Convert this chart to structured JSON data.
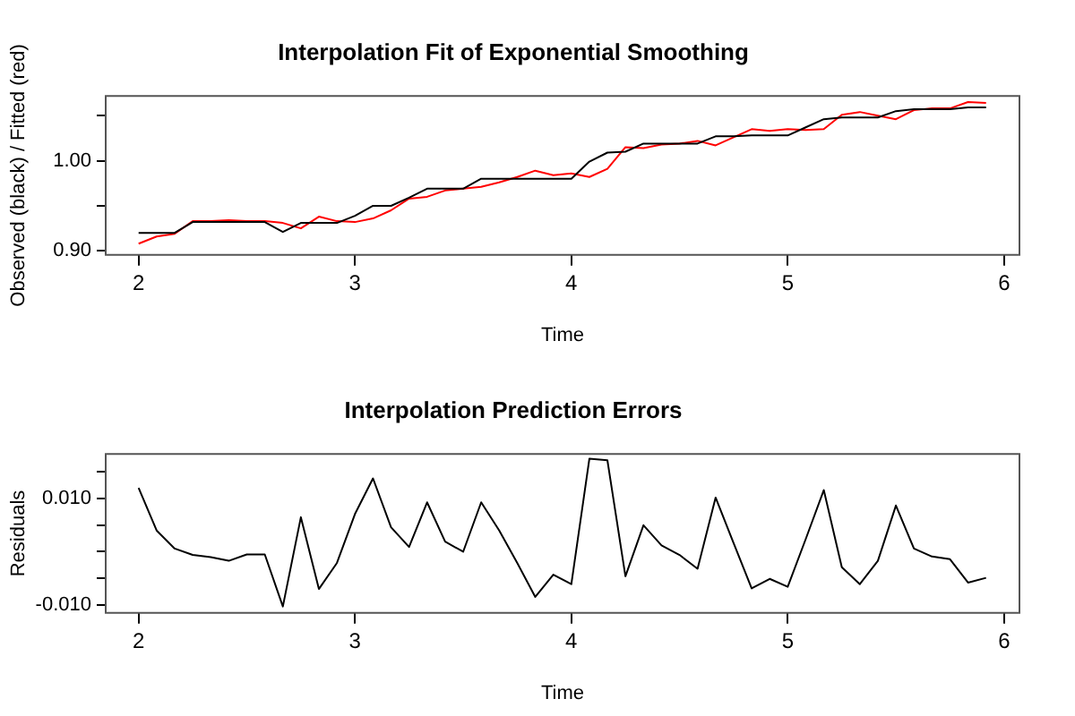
{
  "chart_data": [
    {
      "type": "line",
      "title": "Interpolation Fit of Exponential Smoothing",
      "xlabel": "Time",
      "ylabel": "Observed (black) / Fitted (red)",
      "x": [
        2,
        2.0833,
        2.1667,
        2.25,
        2.3333,
        2.4167,
        2.5,
        2.5833,
        2.6667,
        2.75,
        2.8333,
        2.9167,
        3,
        3.0833,
        3.1667,
        3.25,
        3.3333,
        3.4167,
        3.5,
        3.5833,
        3.6667,
        3.75,
        3.8333,
        3.9167,
        4,
        4.0833,
        4.1667,
        4.25,
        4.3333,
        4.4167,
        4.5,
        4.5833,
        4.6667,
        4.75,
        4.8333,
        4.9167,
        5,
        5.0833,
        5.1667,
        5.25,
        5.3333,
        5.4167,
        5.5,
        5.5833,
        5.6667,
        5.75,
        5.8333,
        5.9167
      ],
      "series": [
        {
          "color": "#000000",
          "values": [
            0.92,
            0.92,
            0.92,
            0.932,
            0.932,
            0.932,
            0.932,
            0.932,
            0.921,
            0.931,
            0.931,
            0.931,
            0.939,
            0.95,
            0.95,
            0.959,
            0.969,
            0.969,
            0.969,
            0.98,
            0.98,
            0.98,
            0.98,
            0.98,
            0.98,
            0.999,
            1.009,
            1.01,
            1.019,
            1.019,
            1.019,
            1.019,
            1.027,
            1.027,
            1.028,
            1.028,
            1.028,
            1.037,
            1.046,
            1.048,
            1.048,
            1.048,
            1.055,
            1.057,
            1.057,
            1.057,
            1.059,
            1.059
          ]
        },
        {
          "color": "#ff0000",
          "values": [
            0.908,
            0.916,
            0.919,
            0.933,
            0.933,
            0.934,
            0.933,
            0.933,
            0.931,
            0.925,
            0.938,
            0.933,
            0.932,
            0.936,
            0.945,
            0.958,
            0.96,
            0.967,
            0.969,
            0.971,
            0.976,
            0.982,
            0.989,
            0.984,
            0.986,
            0.982,
            0.991,
            1.015,
            1.014,
            1.018,
            1.019,
            1.022,
            1.017,
            1.026,
            1.035,
            1.033,
            1.035,
            1.034,
            1.035,
            1.051,
            1.054,
            1.05,
            1.046,
            1.056,
            1.058,
            1.058,
            1.065,
            1.064
          ]
        }
      ],
      "xlim": [
        1.848,
        6.071
      ],
      "xticks": [
        2,
        3,
        4,
        5,
        6
      ],
      "ylim": [
        0.8956,
        1.0718
      ],
      "yticks": [
        {
          "value": 0.9,
          "label": "0.90"
        },
        {
          "value": 0.95,
          "label": null
        },
        {
          "value": 1.0,
          "label": "1.00"
        },
        {
          "value": 1.05,
          "label": null
        }
      ],
      "grid": false,
      "legend": false,
      "marker": "none",
      "line_style": "solid"
    },
    {
      "type": "line",
      "title": "Interpolation Prediction Errors",
      "xlabel": "Time",
      "ylabel": "Residuals",
      "x": [
        2,
        2.0833,
        2.1667,
        2.25,
        2.3333,
        2.4167,
        2.5,
        2.5833,
        2.6667,
        2.75,
        2.8333,
        2.9167,
        3,
        3.0833,
        3.1667,
        3.25,
        3.3333,
        3.4167,
        3.5,
        3.5833,
        3.6667,
        3.75,
        3.8333,
        3.9167,
        4,
        4.0833,
        4.1667,
        4.25,
        4.3333,
        4.4167,
        4.5,
        4.5833,
        4.6667,
        4.75,
        4.8333,
        4.9167,
        5,
        5.0833,
        5.1667,
        5.25,
        5.3333,
        5.4167,
        5.5,
        5.5833,
        5.6667,
        5.75,
        5.8333,
        5.9167
      ],
      "series": [
        {
          "color": "#000000",
          "values": [
            0.012,
            0.004,
            0.0006,
            -0.0006,
            -0.001,
            -0.0017,
            -0.0005,
            -0.0005,
            -0.0103,
            0.0065,
            -0.007,
            -0.0021,
            0.0071,
            0.0138,
            0.0046,
            0.0009,
            0.0093,
            0.0019,
            0.0,
            0.0093,
            0.004,
            -0.0021,
            -0.0085,
            -0.0043,
            -0.0061,
            0.0175,
            0.0172,
            -0.0046,
            0.005,
            0.0012,
            -0.0006,
            -0.0032,
            0.0102,
            0.0016,
            -0.0069,
            -0.0051,
            -0.0066,
            0.0024,
            0.0116,
            -0.0029,
            -0.0061,
            -0.0017,
            0.0087,
            0.0006,
            -0.0009,
            -0.0014,
            -0.0058,
            -0.0049
          ]
        }
      ],
      "xlim": [
        1.848,
        6.071
      ],
      "xticks": [
        2,
        3,
        4,
        5,
        6
      ],
      "ylim": [
        -0.0115,
        0.0184
      ],
      "yticks": [
        {
          "value": -0.01,
          "label": "-0.010"
        },
        {
          "value": -0.005,
          "label": null
        },
        {
          "value": 0,
          "label": null
        },
        {
          "value": 0.005,
          "label": null
        },
        {
          "value": 0.01,
          "label": "0.010"
        },
        {
          "value": 0.015,
          "label": null
        }
      ],
      "grid": false,
      "legend": false,
      "marker": "none",
      "line_style": "solid"
    }
  ]
}
